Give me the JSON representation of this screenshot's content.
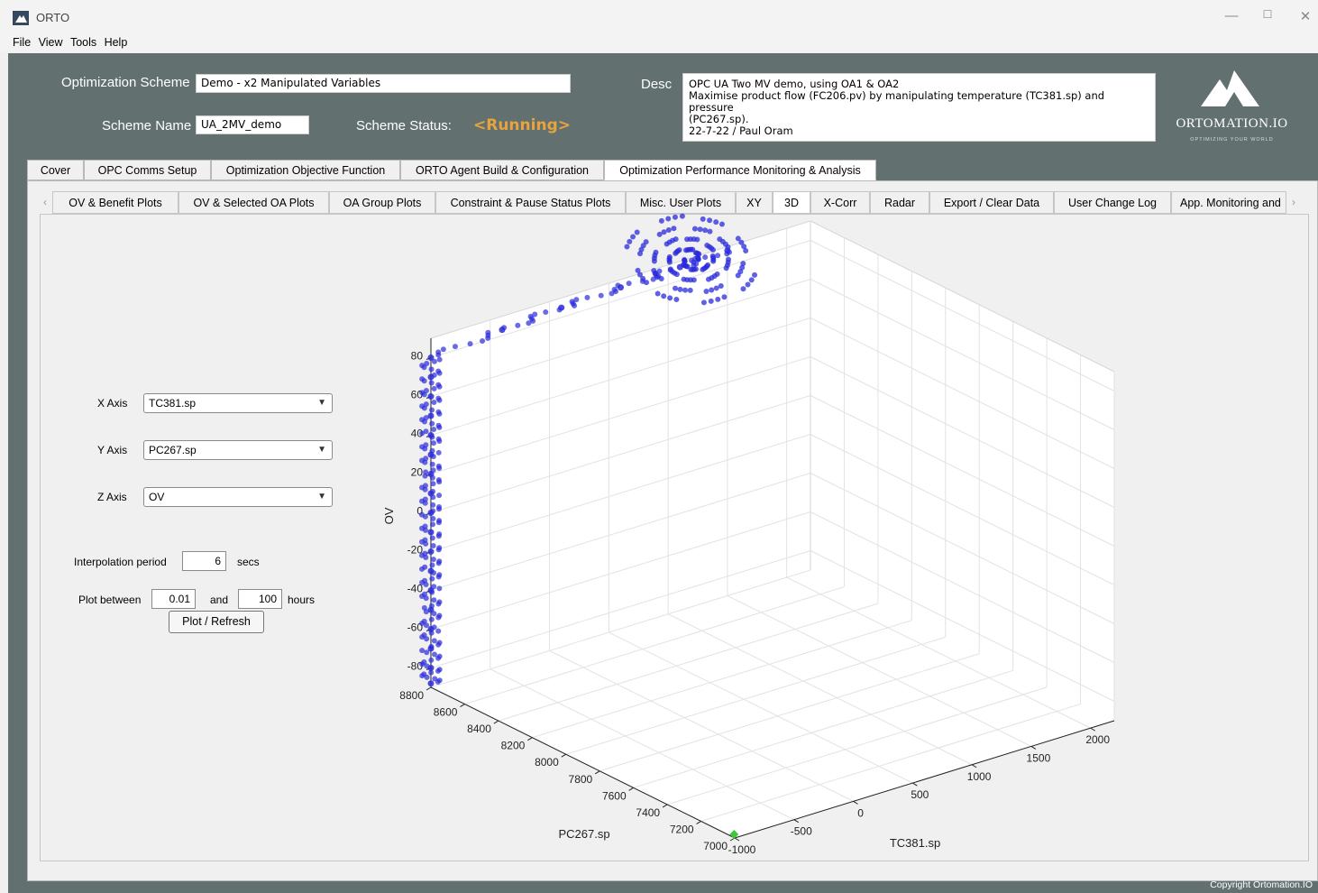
{
  "window": {
    "title": "ORTO"
  },
  "menu": [
    "File",
    "View",
    "Tools",
    "Help"
  ],
  "header": {
    "scheme_label": "Optimization Scheme",
    "scheme_value": "Demo - x2 Manipulated Variables",
    "name_label": "Scheme Name",
    "name_value": "UA_2MV_demo",
    "status_label": "Scheme Status:",
    "status_value": "<Running>",
    "desc_label": "Desc",
    "desc_lines": [
      "OPC UA Two MV demo, using OA1 & OA2",
      "Maximise product flow (FC206.pv) by manipulating temperature (TC381.sp) and pressure",
      "(PC267.sp).",
      "22-7-22 / Paul Oram"
    ],
    "logo_name": "ORTOMATION.IO",
    "logo_tagline": "OPTIMIZING YOUR WORLD",
    "status_color": "#e8a33d"
  },
  "main_tabs": [
    "Cover",
    "OPC Comms Setup",
    "Optimization Objective Function",
    "ORTO Agent Build & Configuration",
    "Optimization Performance Monitoring & Analysis"
  ],
  "main_tab_active": "Optimization Performance Monitoring & Analysis",
  "sub_tabs": [
    "OV & Benefit Plots",
    "OV & Selected OA Plots",
    "OA Group Plots",
    "Constraint & Pause Status Plots",
    "Misc. User Plots",
    "XY",
    "3D",
    "X-Corr",
    "Radar",
    "Export / Clear Data",
    "User Change Log",
    "App. Monitoring and"
  ],
  "sub_tab_active": "3D",
  "controls": {
    "x_axis_label": "X Axis",
    "x_axis_value": "TC381.sp",
    "y_axis_label": "Y Axis",
    "y_axis_value": "PC267.sp",
    "z_axis_label": "Z Axis",
    "z_axis_value": "OV",
    "interp_label": "Interpolation period",
    "interp_value": "6",
    "interp_unit": "secs",
    "plot_between_label": "Plot between",
    "plot_from": "0.01",
    "and_label": "and",
    "plot_to": "100",
    "hours_label": "hours",
    "plot_button": "Plot / Refresh"
  },
  "chart_data": {
    "type": "scatter",
    "projection": "3d",
    "xlabel": "TC381.sp",
    "ylabel": "PC267.sp",
    "zlabel": "OV",
    "x_ticks": [
      "-1000",
      "-500",
      "0",
      "500",
      "1000",
      "1500",
      "2000"
    ],
    "y_ticks": [
      "7000",
      "7200",
      "7400",
      "7600",
      "7800",
      "8000",
      "8200",
      "8400",
      "8600",
      "8800"
    ],
    "z_ticks": [
      "-80",
      "-60",
      "-40",
      "-20",
      "0",
      "20",
      "40",
      "60",
      "80"
    ],
    "xlim": [
      -1000,
      2200
    ],
    "ylim": [
      7000,
      8800
    ],
    "zlim": [
      -90,
      90
    ],
    "grid": true,
    "series": [
      {
        "color": "#2b2bdc",
        "points": [
          [
            -1000,
            8800,
            -88
          ],
          [
            -1000,
            8800,
            -80
          ],
          [
            -1000,
            8800,
            -70
          ],
          [
            -1000,
            8800,
            -60
          ],
          [
            -1000,
            8800,
            -50
          ],
          [
            -1000,
            8800,
            -40
          ],
          [
            -1000,
            8800,
            -30
          ],
          [
            -1000,
            8800,
            -20
          ],
          [
            -1000,
            8800,
            -10
          ],
          [
            -1000,
            8800,
            0
          ],
          [
            -1000,
            8800,
            10
          ],
          [
            -1000,
            8800,
            20
          ],
          [
            -1000,
            8800,
            30
          ],
          [
            -1000,
            8800,
            40
          ],
          [
            -1000,
            8800,
            50
          ],
          [
            -1000,
            8800,
            60
          ],
          [
            -1000,
            8800,
            70
          ],
          [
            -1000,
            8800,
            80
          ],
          [
            -400,
            8800,
            83
          ],
          [
            100,
            8800,
            85
          ],
          [
            600,
            8800,
            86
          ],
          [
            1100,
            8800,
            87
          ],
          [
            1500,
            8800,
            88
          ]
        ]
      },
      {
        "color": "#3cc93c",
        "points": [
          [
            -1000,
            7000,
            -90
          ]
        ]
      }
    ]
  },
  "footer": {
    "copyright": "Copyright Ortomation.IO"
  }
}
